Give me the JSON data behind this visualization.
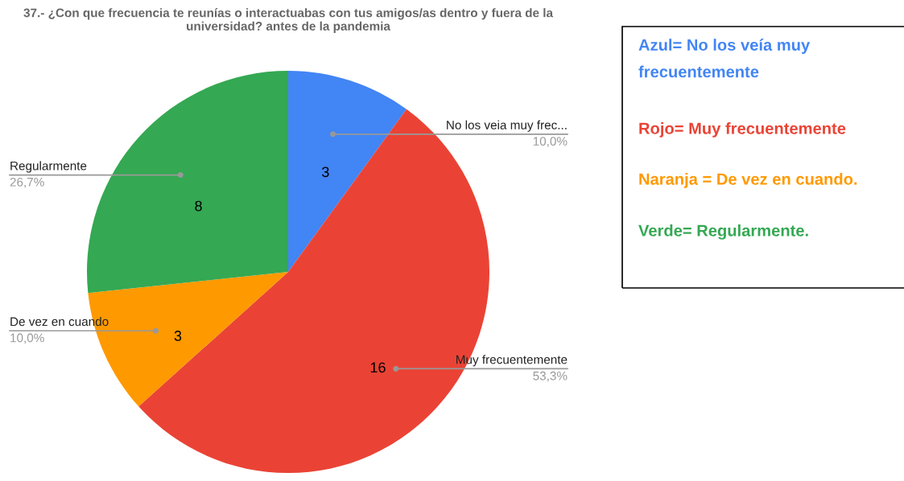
{
  "chart_data": {
    "type": "pie",
    "title": "37.- ¿Con que frecuencia te reunías o interactuabas con tus amigos/as dentro y fuera de la universidad? antes de la pandemia",
    "categories": [
      "No los veia muy frec...",
      "Muy frecuentemente",
      "De vez en cuando",
      "Regularmente"
    ],
    "values": [
      3,
      16,
      3,
      8
    ],
    "colors": [
      "#4285f4",
      "#ea4335",
      "#ff9900",
      "#34a853"
    ],
    "data_labels": true,
    "legend": false,
    "annotations": [
      {
        "text": "10,0%",
        "x": "No los veia muy frec..."
      },
      {
        "text": "53,3%",
        "x": "Muy frecuentemente"
      },
      {
        "text": "10,0%",
        "x": "De vez en cuando"
      },
      {
        "text": "26,7%",
        "x": "Regularmente"
      },
      "Azul= No los veía muy frecuentemente",
      "Rojo= Muy frecuentemente",
      "Naranja = De vez en cuando.",
      "Verde= Regularmente."
    ]
  }
}
